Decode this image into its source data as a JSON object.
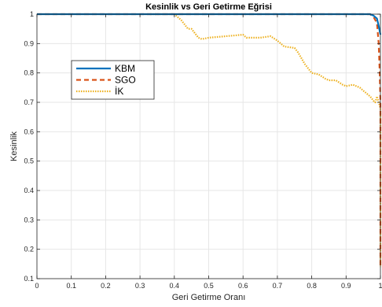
{
  "chart_data": {
    "type": "line",
    "title": "Kesinlik vs Geri Getirme Eğrisi",
    "xlabel": "Geri Getirme Oranı",
    "ylabel": "Kesinlik",
    "xlim": [
      0,
      1
    ],
    "ylim": [
      0.1,
      1
    ],
    "xticks": [
      0,
      0.1,
      0.2,
      0.3,
      0.4,
      0.5,
      0.6,
      0.7,
      0.8,
      0.9,
      1
    ],
    "xtick_labels": [
      "0",
      "0.1",
      "0.2",
      "0.3",
      "0.4",
      "0.5",
      "0.6",
      "0.7",
      "0.8",
      "0.9",
      "1"
    ],
    "yticks": [
      0.1,
      0.2,
      0.3,
      0.4,
      0.5,
      0.6,
      0.7,
      0.8,
      0.9,
      1
    ],
    "ytick_labels": [
      "0.1",
      "0.2",
      "0.3",
      "0.4",
      "0.5",
      "0.6",
      "0.7",
      "0.8",
      "0.9",
      "1"
    ],
    "grid": true,
    "legend_position": "upper-left inside",
    "series": [
      {
        "name": "KBM",
        "color": "#0072BD",
        "style": "solid",
        "points": [
          [
            0,
            1
          ],
          [
            0.97,
            1
          ],
          [
            0.98,
            0.995
          ],
          [
            0.99,
            0.985
          ],
          [
            0.995,
            0.96
          ],
          [
            1,
            0.93
          ]
        ]
      },
      {
        "name": "SGO",
        "color": "#D95319",
        "style": "dashed",
        "points": [
          [
            0,
            1
          ],
          [
            0.97,
            1
          ],
          [
            0.98,
            0.99
          ],
          [
            0.99,
            0.97
          ],
          [
            0.995,
            0.9
          ],
          [
            0.998,
            0.8
          ],
          [
            1,
            0.7
          ],
          [
            1,
            0.4
          ],
          [
            1,
            0.14
          ]
        ]
      },
      {
        "name": "İK",
        "color": "#EDB120",
        "style": "dotted",
        "points": [
          [
            0.33,
            1
          ],
          [
            0.4,
            1
          ],
          [
            0.42,
            0.98
          ],
          [
            0.44,
            0.95
          ],
          [
            0.45,
            0.95
          ],
          [
            0.47,
            0.92
          ],
          [
            0.48,
            0.915
          ],
          [
            0.5,
            0.92
          ],
          [
            0.55,
            0.925
          ],
          [
            0.6,
            0.93
          ],
          [
            0.61,
            0.92
          ],
          [
            0.65,
            0.92
          ],
          [
            0.68,
            0.925
          ],
          [
            0.7,
            0.91
          ],
          [
            0.72,
            0.89
          ],
          [
            0.75,
            0.885
          ],
          [
            0.76,
            0.87
          ],
          [
            0.78,
            0.83
          ],
          [
            0.8,
            0.8
          ],
          [
            0.82,
            0.795
          ],
          [
            0.84,
            0.78
          ],
          [
            0.85,
            0.775
          ],
          [
            0.87,
            0.775
          ],
          [
            0.89,
            0.76
          ],
          [
            0.9,
            0.755
          ],
          [
            0.92,
            0.76
          ],
          [
            0.94,
            0.75
          ],
          [
            0.95,
            0.74
          ],
          [
            0.96,
            0.73
          ],
          [
            0.97,
            0.72
          ],
          [
            0.98,
            0.705
          ],
          [
            0.985,
            0.7
          ],
          [
            0.99,
            0.72
          ],
          [
            0.995,
            0.7
          ],
          [
            1,
            0.68
          ],
          [
            1,
            0.4
          ],
          [
            1,
            0.14
          ]
        ]
      }
    ]
  }
}
